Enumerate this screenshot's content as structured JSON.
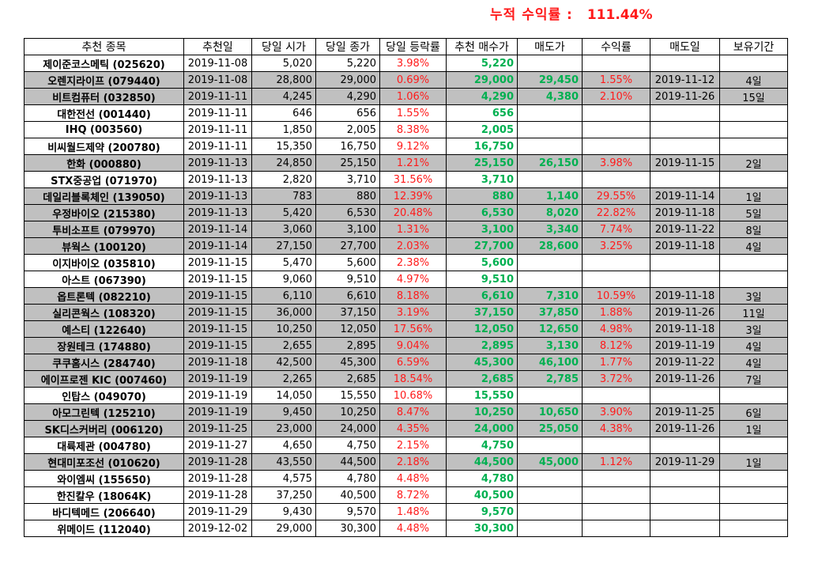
{
  "summary": {
    "label": "누적 수익률 :",
    "value": "111.44%"
  },
  "columns": [
    "추천 종목",
    "추천일",
    "당일 시가",
    "당일 종가",
    "당일 등락률",
    "추천 매수가",
    "매도가",
    "수익률",
    "매도일",
    "보유기간"
  ],
  "rows": [
    {
      "name": "제이준코스메틱 (025620)",
      "date": "2019-11-08",
      "open": "5,020",
      "close": "5,220",
      "change": "3.98%",
      "buy": "5,220",
      "sell": "",
      "ret": "",
      "sdate": "",
      "hold": "",
      "sold": false
    },
    {
      "name": "오렌지라이프 (079440)",
      "date": "2019-11-08",
      "open": "28,800",
      "close": "29,000",
      "change": "0.69%",
      "buy": "29,000",
      "sell": "29,450",
      "ret": "1.55%",
      "sdate": "2019-11-12",
      "hold": "4일",
      "sold": true
    },
    {
      "name": "비트컴퓨터 (032850)",
      "date": "2019-11-11",
      "open": "4,245",
      "close": "4,290",
      "change": "1.06%",
      "buy": "4,290",
      "sell": "4,380",
      "ret": "2.10%",
      "sdate": "2019-11-26",
      "hold": "15일",
      "sold": true
    },
    {
      "name": "대한전선 (001440)",
      "date": "2019-11-11",
      "open": "646",
      "close": "656",
      "change": "1.55%",
      "buy": "656",
      "sell": "",
      "ret": "",
      "sdate": "",
      "hold": "",
      "sold": false
    },
    {
      "name": "IHQ (003560)",
      "date": "2019-11-11",
      "open": "1,850",
      "close": "2,005",
      "change": "8.38%",
      "buy": "2,005",
      "sell": "",
      "ret": "",
      "sdate": "",
      "hold": "",
      "sold": false
    },
    {
      "name": "비씨월드제약 (200780)",
      "date": "2019-11-11",
      "open": "15,350",
      "close": "16,750",
      "change": "9.12%",
      "buy": "16,750",
      "sell": "",
      "ret": "",
      "sdate": "",
      "hold": "",
      "sold": false
    },
    {
      "name": "한화 (000880)",
      "date": "2019-11-13",
      "open": "24,850",
      "close": "25,150",
      "change": "1.21%",
      "buy": "25,150",
      "sell": "26,150",
      "ret": "3.98%",
      "sdate": "2019-11-15",
      "hold": "2일",
      "sold": true
    },
    {
      "name": "STX중공업 (071970)",
      "date": "2019-11-13",
      "open": "2,820",
      "close": "3,710",
      "change": "31.56%",
      "buy": "3,710",
      "sell": "",
      "ret": "",
      "sdate": "",
      "hold": "",
      "sold": false
    },
    {
      "name": "데일리블록체인 (139050)",
      "date": "2019-11-13",
      "open": "783",
      "close": "880",
      "change": "12.39%",
      "buy": "880",
      "sell": "1,140",
      "ret": "29.55%",
      "sdate": "2019-11-14",
      "hold": "1일",
      "sold": true
    },
    {
      "name": "우정바이오 (215380)",
      "date": "2019-11-13",
      "open": "5,420",
      "close": "6,530",
      "change": "20.48%",
      "buy": "6,530",
      "sell": "8,020",
      "ret": "22.82%",
      "sdate": "2019-11-18",
      "hold": "5일",
      "sold": true
    },
    {
      "name": "투비소프트 (079970)",
      "date": "2019-11-14",
      "open": "3,060",
      "close": "3,100",
      "change": "1.31%",
      "buy": "3,100",
      "sell": "3,340",
      "ret": "7.74%",
      "sdate": "2019-11-22",
      "hold": "8일",
      "sold": true
    },
    {
      "name": "뷰웍스 (100120)",
      "date": "2019-11-14",
      "open": "27,150",
      "close": "27,700",
      "change": "2.03%",
      "buy": "27,700",
      "sell": "28,600",
      "ret": "3.25%",
      "sdate": "2019-11-18",
      "hold": "4일",
      "sold": true
    },
    {
      "name": "이지바이오 (035810)",
      "date": "2019-11-15",
      "open": "5,470",
      "close": "5,600",
      "change": "2.38%",
      "buy": "5,600",
      "sell": "",
      "ret": "",
      "sdate": "",
      "hold": "",
      "sold": false
    },
    {
      "name": "아스트 (067390)",
      "date": "2019-11-15",
      "open": "9,060",
      "close": "9,510",
      "change": "4.97%",
      "buy": "9,510",
      "sell": "",
      "ret": "",
      "sdate": "",
      "hold": "",
      "sold": false
    },
    {
      "name": "옵트론텍 (082210)",
      "date": "2019-11-15",
      "open": "6,110",
      "close": "6,610",
      "change": "8.18%",
      "buy": "6,610",
      "sell": "7,310",
      "ret": "10.59%",
      "sdate": "2019-11-18",
      "hold": "3일",
      "sold": true
    },
    {
      "name": "실리콘웍스 (108320)",
      "date": "2019-11-15",
      "open": "36,000",
      "close": "37,150",
      "change": "3.19%",
      "buy": "37,150",
      "sell": "37,850",
      "ret": "1.88%",
      "sdate": "2019-11-26",
      "hold": "11일",
      "sold": true
    },
    {
      "name": "예스티 (122640)",
      "date": "2019-11-15",
      "open": "10,250",
      "close": "12,050",
      "change": "17.56%",
      "buy": "12,050",
      "sell": "12,650",
      "ret": "4.98%",
      "sdate": "2019-11-18",
      "hold": "3일",
      "sold": true
    },
    {
      "name": "장원테크 (174880)",
      "date": "2019-11-15",
      "open": "2,655",
      "close": "2,895",
      "change": "9.04%",
      "buy": "2,895",
      "sell": "3,130",
      "ret": "8.12%",
      "sdate": "2019-11-19",
      "hold": "4일",
      "sold": true
    },
    {
      "name": "쿠쿠홈시스 (284740)",
      "date": "2019-11-18",
      "open": "42,500",
      "close": "45,300",
      "change": "6.59%",
      "buy": "45,300",
      "sell": "46,100",
      "ret": "1.77%",
      "sdate": "2019-11-22",
      "hold": "4일",
      "sold": true
    },
    {
      "name": "에이프로젠 KIC (007460)",
      "date": "2019-11-19",
      "open": "2,265",
      "close": "2,685",
      "change": "18.54%",
      "buy": "2,685",
      "sell": "2,785",
      "ret": "3.72%",
      "sdate": "2019-11-26",
      "hold": "7일",
      "sold": true
    },
    {
      "name": "인탑스 (049070)",
      "date": "2019-11-19",
      "open": "14,050",
      "close": "15,550",
      "change": "10.68%",
      "buy": "15,550",
      "sell": "",
      "ret": "",
      "sdate": "",
      "hold": "",
      "sold": false
    },
    {
      "name": "아모그린텍 (125210)",
      "date": "2019-11-19",
      "open": "9,450",
      "close": "10,250",
      "change": "8.47%",
      "buy": "10,250",
      "sell": "10,650",
      "ret": "3.90%",
      "sdate": "2019-11-25",
      "hold": "6일",
      "sold": true
    },
    {
      "name": "SK디스커버리 (006120)",
      "date": "2019-11-25",
      "open": "23,000",
      "close": "24,000",
      "change": "4.35%",
      "buy": "24,000",
      "sell": "25,050",
      "ret": "4.38%",
      "sdate": "2019-11-26",
      "hold": "1일",
      "sold": true
    },
    {
      "name": "대륙제관 (004780)",
      "date": "2019-11-27",
      "open": "4,650",
      "close": "4,750",
      "change": "2.15%",
      "buy": "4,750",
      "sell": "",
      "ret": "",
      "sdate": "",
      "hold": "",
      "sold": false
    },
    {
      "name": "현대미포조선 (010620)",
      "date": "2019-11-28",
      "open": "43,550",
      "close": "44,500",
      "change": "2.18%",
      "buy": "44,500",
      "sell": "45,000",
      "ret": "1.12%",
      "sdate": "2019-11-29",
      "hold": "1일",
      "sold": true
    },
    {
      "name": "와이엠씨 (155650)",
      "date": "2019-11-28",
      "open": "4,575",
      "close": "4,780",
      "change": "4.48%",
      "buy": "4,780",
      "sell": "",
      "ret": "",
      "sdate": "",
      "hold": "",
      "sold": false
    },
    {
      "name": "한진칼우 (18064K)",
      "date": "2019-11-28",
      "open": "37,250",
      "close": "40,500",
      "change": "8.72%",
      "buy": "40,500",
      "sell": "",
      "ret": "",
      "sdate": "",
      "hold": "",
      "sold": false
    },
    {
      "name": "바디텍메드 (206640)",
      "date": "2019-11-29",
      "open": "9,430",
      "close": "9,570",
      "change": "1.48%",
      "buy": "9,570",
      "sell": "",
      "ret": "",
      "sdate": "",
      "hold": "",
      "sold": false
    },
    {
      "name": "위메이드 (112040)",
      "date": "2019-12-02",
      "open": "29,000",
      "close": "30,300",
      "change": "4.48%",
      "buy": "30,300",
      "sell": "",
      "ret": "",
      "sdate": "",
      "hold": "",
      "sold": false
    }
  ],
  "colors": {
    "accent_red": "#ff1a1a",
    "accent_green": "#00b050",
    "sold_row_bg": "#c0c0c0"
  }
}
